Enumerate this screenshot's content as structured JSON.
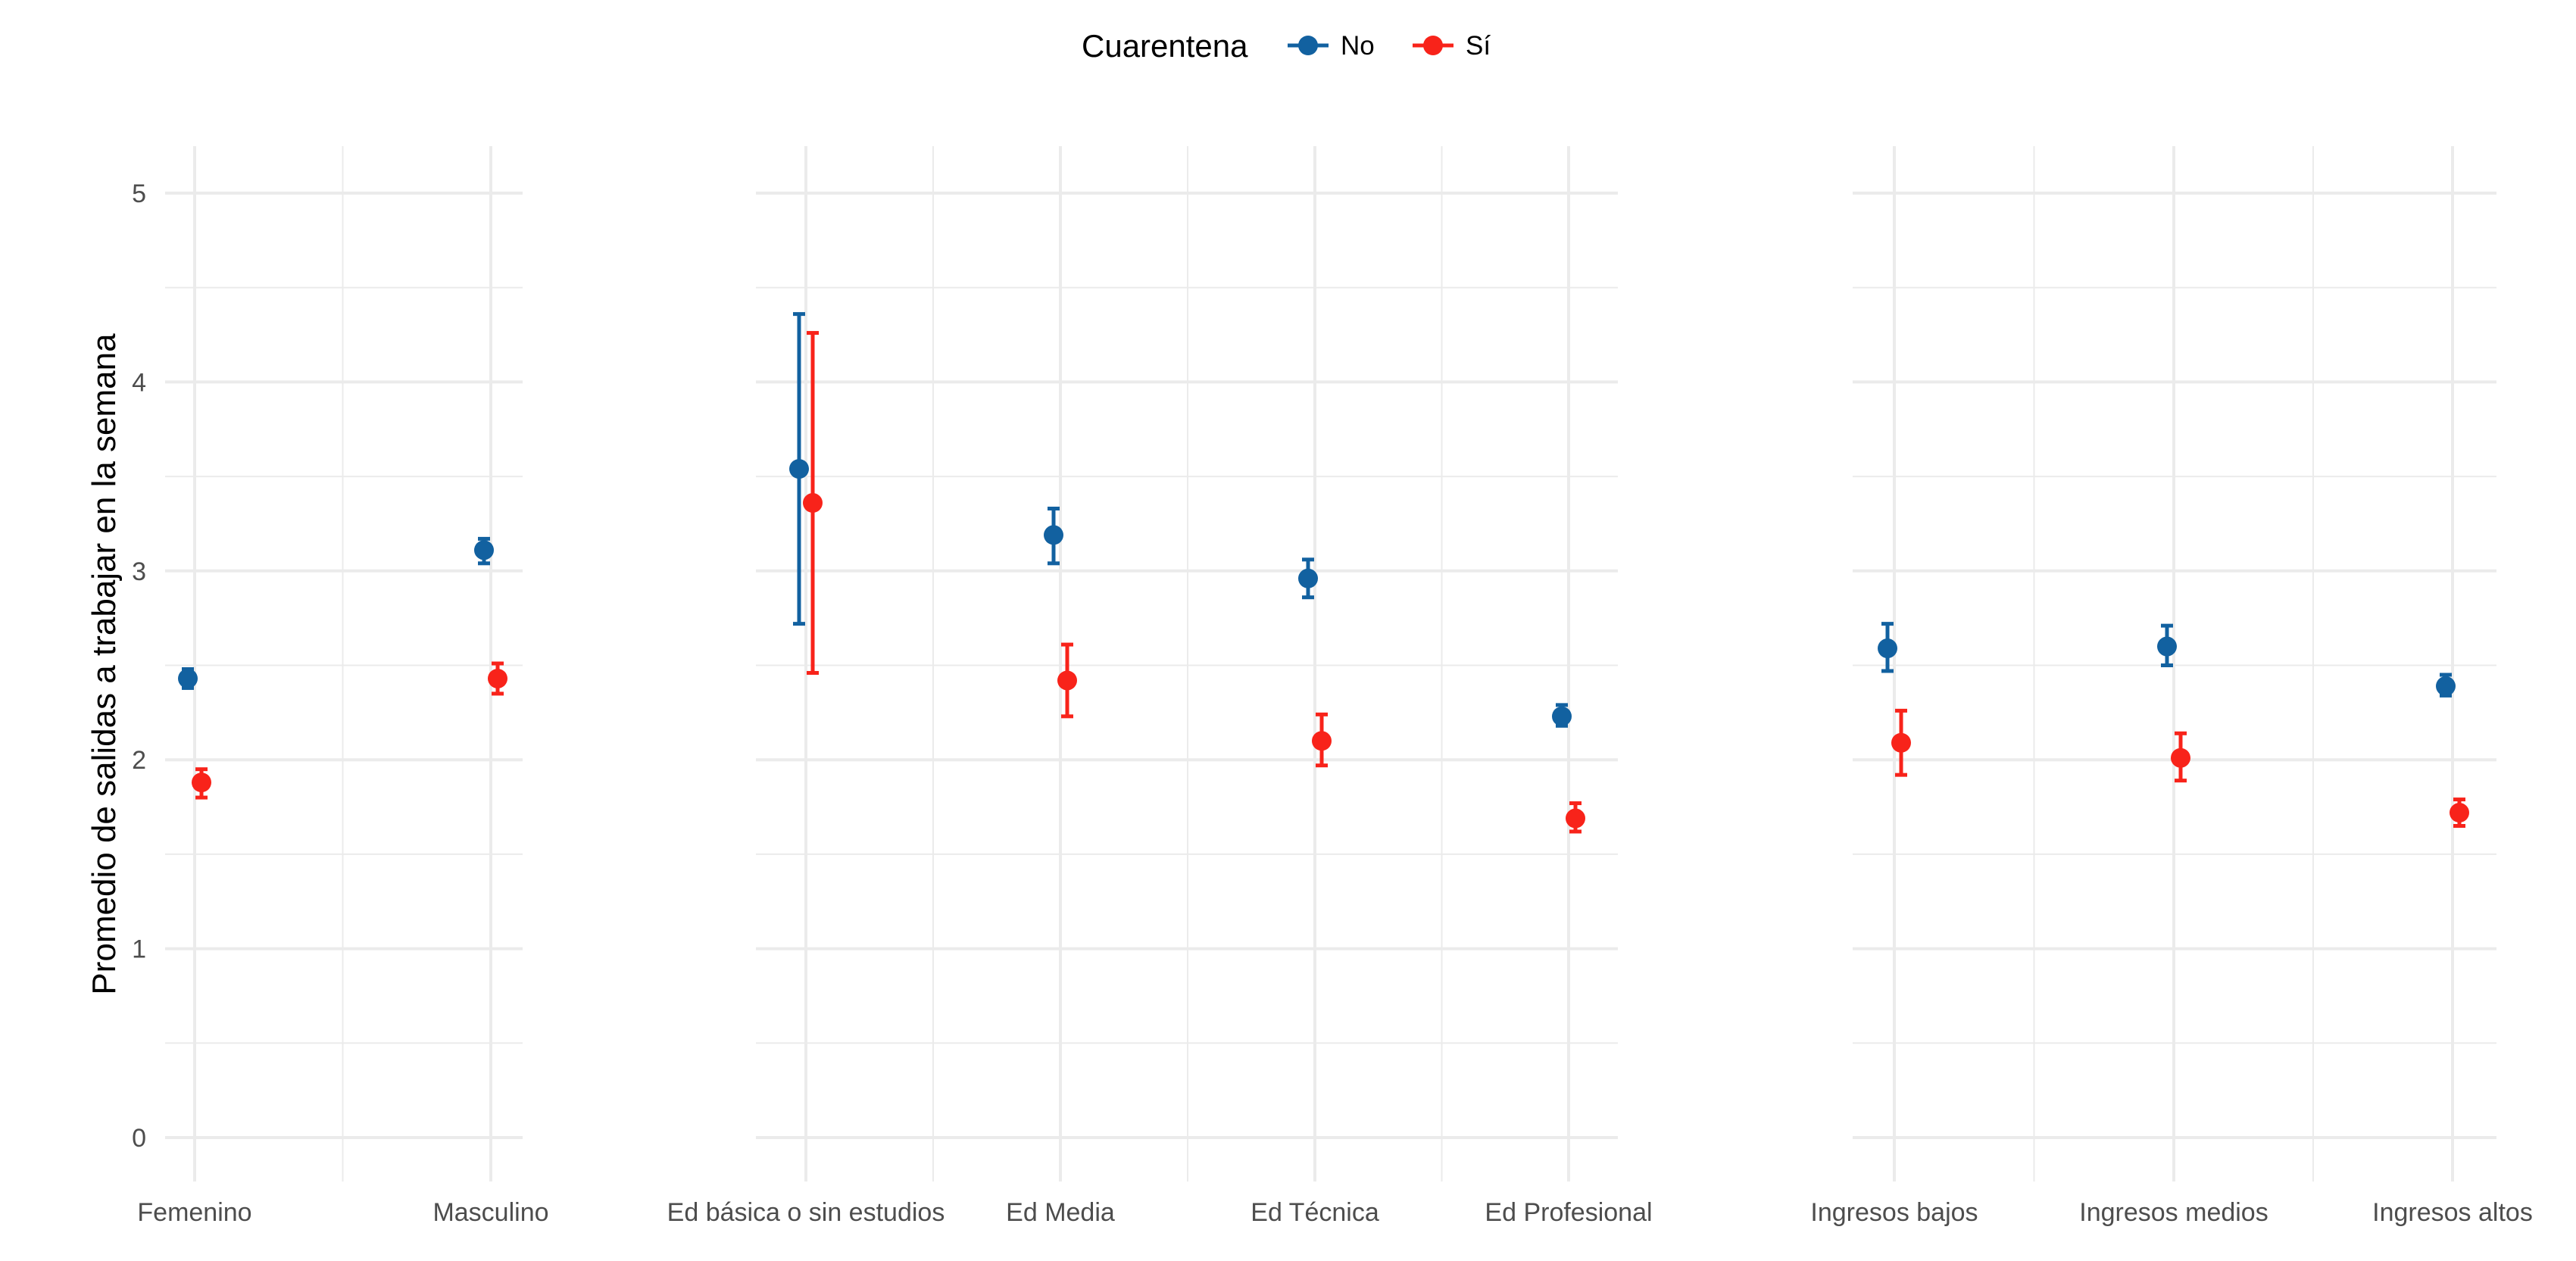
{
  "chart_data": {
    "type": "scatter",
    "ylabel": "Promedio de salidas a trabajar en la semana",
    "ylim": [
      -0.25,
      5.25
    ],
    "yticks": [
      "0",
      "1",
      "2",
      "3",
      "4",
      "5"
    ],
    "grid": true,
    "legend": {
      "title": "Cuarentena",
      "placement": "top",
      "entries": [
        {
          "label": "No",
          "color": "#1261a0"
        },
        {
          "label": "Sí",
          "color": "#f8231a"
        }
      ]
    },
    "series": [
      {
        "name": "No",
        "color": "#1261a0"
      },
      {
        "name": "Sí",
        "color": "#f8231a"
      }
    ],
    "panels": [
      {
        "categories": [
          "Femenino",
          "Masculino"
        ],
        "points": [
          {
            "series": "No",
            "values": [
              2.43,
              3.11
            ],
            "lower": [
              2.38,
              3.04
            ],
            "upper": [
              2.48,
              3.17
            ]
          },
          {
            "series": "Sí",
            "values": [
              1.88,
              2.43
            ],
            "lower": [
              1.8,
              2.35
            ],
            "upper": [
              1.95,
              2.51
            ]
          }
        ]
      },
      {
        "categories": [
          "Ed básica o sin estudios",
          "Ed Media",
          "Ed Técnica",
          "Ed Profesional"
        ],
        "points": [
          {
            "series": "No",
            "values": [
              3.54,
              3.19,
              2.96,
              2.23
            ],
            "lower": [
              2.72,
              3.04,
              2.86,
              2.18
            ],
            "upper": [
              4.36,
              3.33,
              3.06,
              2.29
            ]
          },
          {
            "series": "Sí",
            "values": [
              3.36,
              2.42,
              2.1,
              1.69
            ],
            "lower": [
              2.46,
              2.23,
              1.97,
              1.62
            ],
            "upper": [
              4.26,
              2.61,
              2.24,
              1.77
            ]
          }
        ]
      },
      {
        "categories": [
          "Ingresos bajos",
          "Ingresos medios",
          "Ingresos altos"
        ],
        "points": [
          {
            "series": "No",
            "values": [
              2.59,
              2.6,
              2.39
            ],
            "lower": [
              2.47,
              2.5,
              2.34
            ],
            "upper": [
              2.72,
              2.71,
              2.45
            ]
          },
          {
            "series": "Sí",
            "values": [
              2.09,
              2.01,
              1.72
            ],
            "lower": [
              1.92,
              1.89,
              1.65
            ],
            "upper": [
              2.26,
              2.14,
              1.79
            ]
          }
        ]
      }
    ]
  }
}
